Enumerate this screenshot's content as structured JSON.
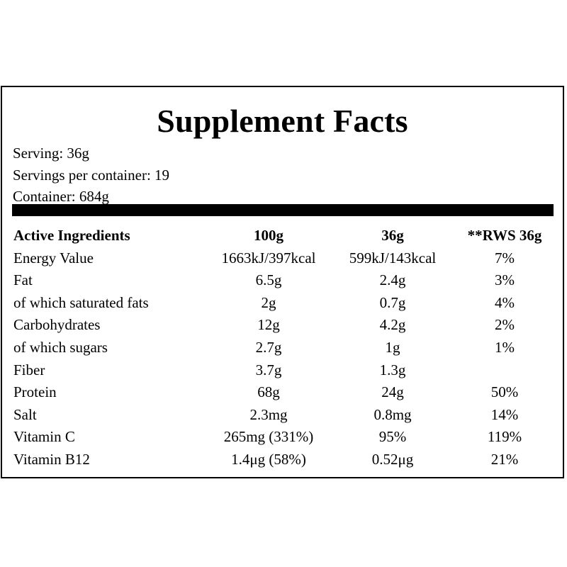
{
  "title": "Supplement Facts",
  "serving": {
    "serving_size": "Serving: 36g",
    "servings_per_container": "Servings per container: 19",
    "container": "Container: 684g"
  },
  "table": {
    "headers": [
      "Active Ingredients",
      "100g",
      "36g",
      "**RWS 36g"
    ],
    "rows": [
      [
        "Energy Value",
        "1663kJ/397kcal",
        "599kJ/143kcal",
        "7%"
      ],
      [
        "Fat",
        "6.5g",
        "2.4g",
        "3%"
      ],
      [
        "of which saturated fats",
        "2g",
        "0.7g",
        "4%"
      ],
      [
        "Carbohydrates",
        "12g",
        "4.2g",
        "2%"
      ],
      [
        "of which sugars",
        "2.7g",
        "1g",
        "1%"
      ],
      [
        "Fiber",
        "3.7g",
        "1.3g",
        ""
      ],
      [
        "Protein",
        "68g",
        "24g",
        "50%"
      ],
      [
        "Salt",
        "2.3mg",
        "0.8mg",
        "14%"
      ],
      [
        "Vitamin C",
        "265mg (331%)",
        "95%",
        "119%"
      ],
      [
        "Vitamin B12",
        "1.4μg (58%)",
        "0.52μg",
        "21%"
      ]
    ]
  }
}
